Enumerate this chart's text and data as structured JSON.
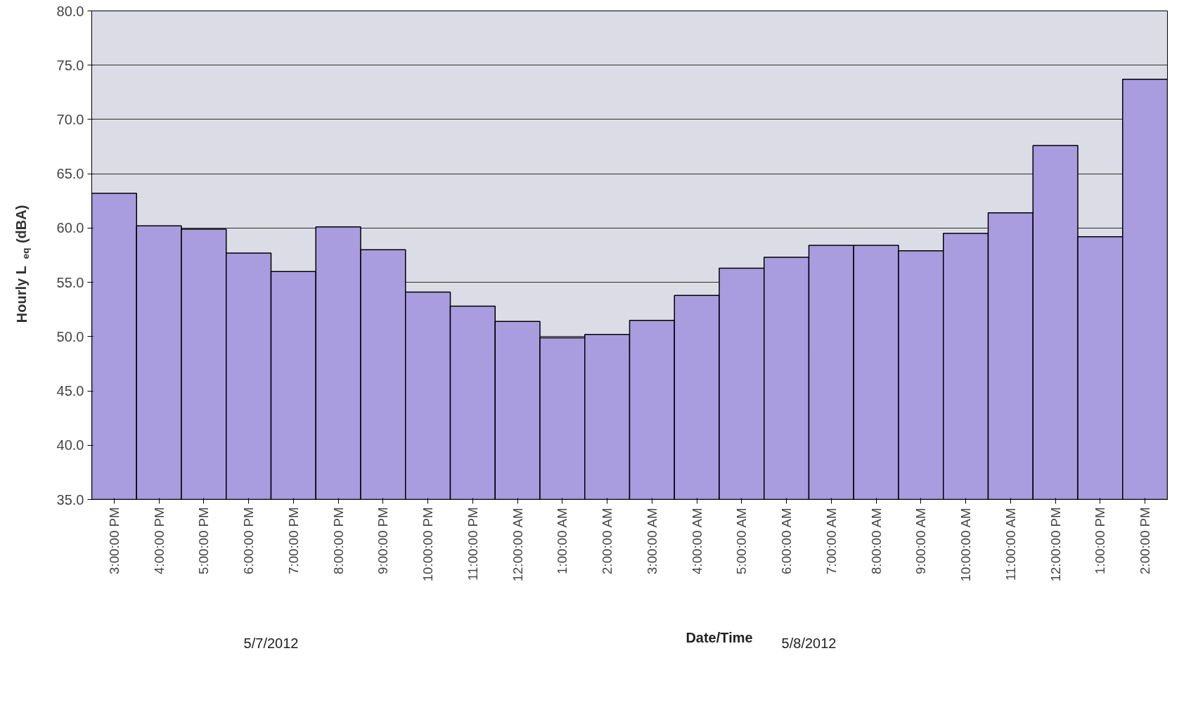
{
  "chart_data": {
    "type": "bar",
    "xlabel": "Date/Time",
    "ylabel": "Hourly L$_{eq}$ (dBA)",
    "categories": [
      "3:00:00 PM",
      "4:00:00 PM",
      "5:00:00 PM",
      "6:00:00 PM",
      "7:00:00 PM",
      "8:00:00 PM",
      "9:00:00 PM",
      "10:00:00 PM",
      "11:00:00 PM",
      "12:00:00 AM",
      "1:00:00 AM",
      "2:00:00 AM",
      "3:00:00 AM",
      "4:00:00 AM",
      "5:00:00 AM",
      "6:00:00 AM",
      "7:00:00 AM",
      "8:00:00 AM",
      "9:00:00 AM",
      "10:00:00 AM",
      "11:00:00 AM",
      "12:00:00 PM",
      "1:00:00 PM",
      "2:00:00 PM"
    ],
    "values": [
      63.2,
      60.2,
      59.9,
      57.7,
      56.0,
      60.1,
      58.0,
      54.1,
      52.8,
      51.4,
      49.9,
      50.2,
      51.5,
      53.8,
      56.3,
      57.3,
      58.4,
      58.4,
      57.9,
      59.5,
      61.4,
      67.6,
      59.2,
      73.7
    ],
    "color": "#a99ddf",
    "ylim": [
      35,
      80
    ],
    "yticks": [
      {
        "value": 35,
        "label": "35.0"
      },
      {
        "value": 40,
        "label": "40.0"
      },
      {
        "value": 45,
        "label": "45.0"
      },
      {
        "value": 50,
        "label": "50.0"
      },
      {
        "value": 55,
        "label": "55.0"
      },
      {
        "value": 60,
        "label": "60.0"
      },
      {
        "value": 65,
        "label": "65.0"
      },
      {
        "value": 70,
        "label": "70.0"
      },
      {
        "value": 75,
        "label": "75.0"
      },
      {
        "value": 80,
        "label": "80.0"
      }
    ],
    "grid": "y",
    "annotations": [
      "5/7/2012",
      "5/8/2012"
    ]
  }
}
